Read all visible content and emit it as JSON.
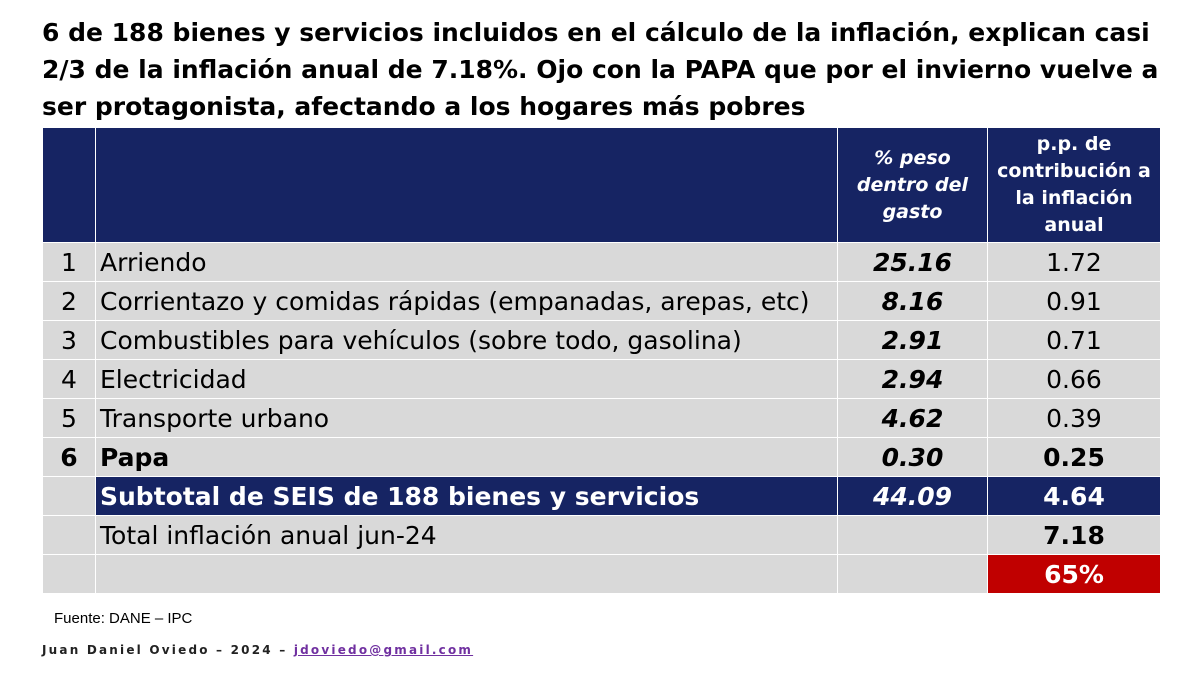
{
  "title": "6 de 188 bienes y servicios incluidos en el cálculo de la inflación, explican casi 2/3 de la inflación anual de 7.18%. Ojo con la PAPA que por el invierno vuelve a ser protagonista, afectando a los hogares más pobres",
  "table": {
    "headers": {
      "num": "",
      "item": "",
      "weight": "% peso dentro del gasto",
      "contribution": "p.p. de contribución a la inflación anual"
    },
    "rows": [
      {
        "num": "1",
        "item": "Arriendo",
        "weight": "25.16",
        "contribution": "1.72"
      },
      {
        "num": "2",
        "item": "Corrientazo y comidas rápidas (empanadas, arepas, etc)",
        "weight": "8.16",
        "contribution": "0.91"
      },
      {
        "num": "3",
        "item": "Combustibles para vehículos (sobre todo, gasolina)",
        "weight": "2.91",
        "contribution": "0.71"
      },
      {
        "num": "4",
        "item": "Electricidad",
        "weight": "2.94",
        "contribution": "0.66"
      },
      {
        "num": "5",
        "item": "Transporte urbano",
        "weight": "4.62",
        "contribution": "0.39"
      },
      {
        "num": "6",
        "item": "Papa",
        "weight": "0.30",
        "contribution": "0.25"
      }
    ],
    "subtotal": {
      "item": "Subtotal de SEIS de 188 bienes y servicios",
      "weight": "44.09",
      "contribution": "4.64"
    },
    "total": {
      "item": "Total inflación anual jun-24",
      "contribution": "7.18"
    },
    "share": {
      "contribution": "65%"
    }
  },
  "source": "Fuente: DANE – IPC",
  "footer": {
    "author": "Juan Daniel Oviedo – 2024 –",
    "email": "jdoviedo@gmail.com"
  },
  "colors": {
    "header_bg": "#162463",
    "row_bg": "#d9d9d9",
    "highlight_red": "#c00000",
    "email_link": "#7030a0"
  }
}
